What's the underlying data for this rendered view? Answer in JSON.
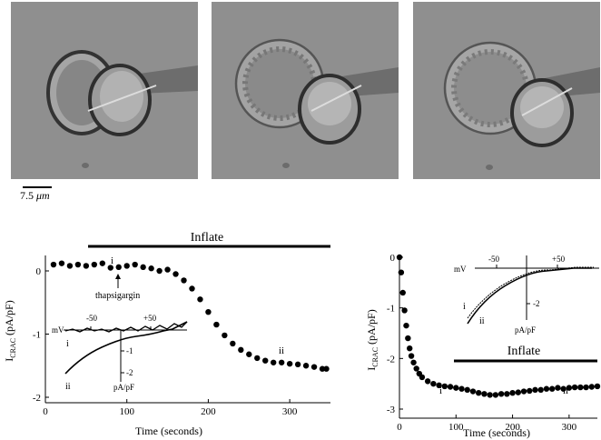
{
  "scale_bar": {
    "label_num": "7.5",
    "label_unit": " μm"
  },
  "left_panel": {
    "banner": "Inflate",
    "ylabel_main": "I",
    "ylabel_sub": "CRAC",
    "ylabel_unit": " (pA/pF)",
    "xlabel": "Time (seconds)",
    "x_ticks": [
      "0",
      "100",
      "200",
      "300"
    ],
    "y_ticks": [
      "0",
      "-1",
      "-2"
    ],
    "annotation_arrow": "thapsigargin",
    "marker_i_top": "i",
    "marker_ii_right": "ii",
    "inset": {
      "mv_label": "mV",
      "tick_neg50": "-50",
      "tick_pos50": "+50",
      "tick_m1": "-1",
      "tick_m2": "-2",
      "unit": "pA/pF",
      "trace_i": "i",
      "trace_ii": "ii"
    }
  },
  "right_panel": {
    "banner": "Inflate",
    "ylabel_main": "I",
    "ylabel_sub": "CRAC",
    "ylabel_unit": " (pA/pF)",
    "xlabel": "Time (seconds)",
    "x_ticks": [
      "0",
      "100",
      "200",
      "300"
    ],
    "y_ticks": [
      "0",
      "-1",
      "-2",
      "-3"
    ],
    "marker_i": "i",
    "marker_ii": "ii",
    "inset": {
      "mv_label": "mV",
      "tick_neg50": "-50",
      "tick_pos50": "+50",
      "tick_m2": "-2",
      "unit": "pA/pF",
      "trace_i": "i",
      "trace_ii": "ii"
    }
  },
  "chart_data": [
    {
      "type": "scatter",
      "xlabel": "Time (seconds)",
      "ylabel": "ICRAC (pA/pF)",
      "xlim": [
        0,
        350
      ],
      "ylim": [
        -2,
        0.15
      ],
      "annotations": [
        "Inflate",
        "thapsigargin",
        "i",
        "ii"
      ],
      "points": [
        [
          10,
          0.1
        ],
        [
          20,
          0.12
        ],
        [
          30,
          0.08
        ],
        [
          40,
          0.1
        ],
        [
          50,
          0.08
        ],
        [
          60,
          0.1
        ],
        [
          70,
          0.12
        ],
        [
          80,
          0.05
        ],
        [
          90,
          0.06
        ],
        [
          100,
          0.08
        ],
        [
          110,
          0.1
        ],
        [
          120,
          0.06
        ],
        [
          130,
          0.04
        ],
        [
          140,
          0.0
        ],
        [
          150,
          0.02
        ],
        [
          160,
          -0.05
        ],
        [
          170,
          -0.15
        ],
        [
          180,
          -0.28
        ],
        [
          190,
          -0.45
        ],
        [
          200,
          -0.65
        ],
        [
          210,
          -0.85
        ],
        [
          220,
          -1.02
        ],
        [
          230,
          -1.15
        ],
        [
          240,
          -1.25
        ],
        [
          250,
          -1.32
        ],
        [
          260,
          -1.38
        ],
        [
          270,
          -1.42
        ],
        [
          280,
          -1.45
        ],
        [
          290,
          -1.45
        ],
        [
          300,
          -1.47
        ],
        [
          310,
          -1.48
        ],
        [
          320,
          -1.5
        ],
        [
          330,
          -1.52
        ],
        [
          340,
          -1.55
        ],
        [
          345,
          -1.55
        ]
      ]
    },
    {
      "type": "scatter",
      "xlabel": "Time (seconds)",
      "ylabel": "ICRAC (pA/pF)",
      "xlim": [
        0,
        350
      ],
      "ylim": [
        -3,
        0
      ],
      "annotations": [
        "Inflate",
        "i",
        "ii"
      ],
      "points": [
        [
          0,
          0.0
        ],
        [
          3,
          -0.3
        ],
        [
          6,
          -0.7
        ],
        [
          9,
          -1.05
        ],
        [
          12,
          -1.35
        ],
        [
          15,
          -1.6
        ],
        [
          18,
          -1.8
        ],
        [
          21,
          -1.95
        ],
        [
          25,
          -2.08
        ],
        [
          30,
          -2.2
        ],
        [
          35,
          -2.3
        ],
        [
          40,
          -2.37
        ],
        [
          50,
          -2.45
        ],
        [
          60,
          -2.5
        ],
        [
          70,
          -2.53
        ],
        [
          80,
          -2.55
        ],
        [
          90,
          -2.56
        ],
        [
          100,
          -2.58
        ],
        [
          110,
          -2.6
        ],
        [
          120,
          -2.62
        ],
        [
          130,
          -2.65
        ],
        [
          140,
          -2.68
        ],
        [
          150,
          -2.7
        ],
        [
          160,
          -2.72
        ],
        [
          170,
          -2.72
        ],
        [
          180,
          -2.7
        ],
        [
          190,
          -2.7
        ],
        [
          200,
          -2.68
        ],
        [
          210,
          -2.67
        ],
        [
          220,
          -2.65
        ],
        [
          230,
          -2.64
        ],
        [
          240,
          -2.62
        ],
        [
          250,
          -2.62
        ],
        [
          260,
          -2.6
        ],
        [
          270,
          -2.6
        ],
        [
          280,
          -2.58
        ],
        [
          290,
          -2.6
        ],
        [
          300,
          -2.58
        ],
        [
          310,
          -2.57
        ],
        [
          320,
          -2.57
        ],
        [
          330,
          -2.57
        ],
        [
          340,
          -2.56
        ],
        [
          350,
          -2.55
        ]
      ]
    }
  ]
}
